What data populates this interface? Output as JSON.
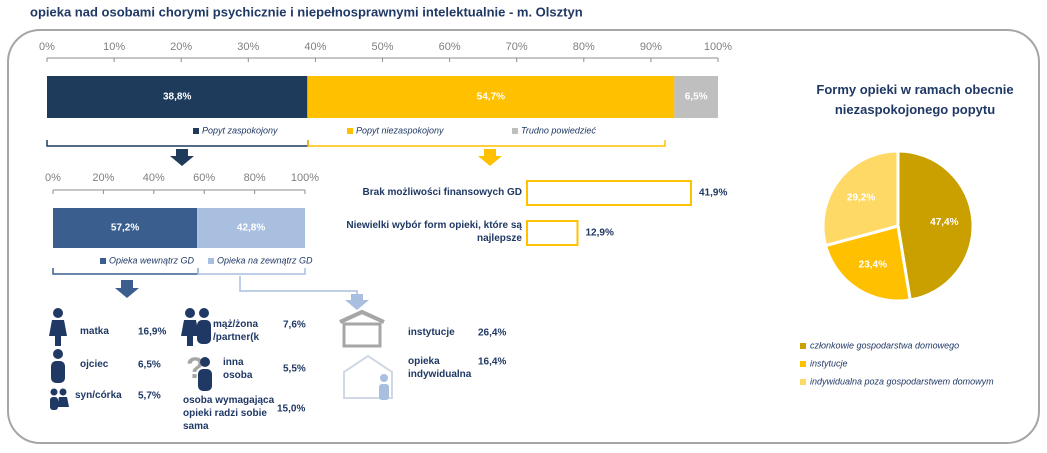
{
  "title": "opieka nad osobami chorymi psychicznie i niepełnosprawnymi intelektualnie - m. Olsztyn",
  "chart_data": [
    {
      "type": "stacked-bar",
      "series": [
        {
          "name": "Popyt zaspokojony",
          "color": "#1f3b5c",
          "values": [
            38.8
          ],
          "value_labels": [
            "38,8%"
          ]
        },
        {
          "name": "Popyt niezaspokojony",
          "color": "#ffc000",
          "values": [
            54.7
          ],
          "value_labels": [
            "54,7%"
          ]
        },
        {
          "name": "Trudno powiedzieć",
          "color": "#bfbfbf",
          "values": [
            6.5
          ],
          "value_labels": [
            "6,5%"
          ]
        }
      ],
      "xlim": [
        0,
        100
      ],
      "xticks": [
        {
          "value": 0,
          "label": "0%"
        },
        {
          "value": 10,
          "label": "10%"
        },
        {
          "value": 20,
          "label": "20%"
        },
        {
          "value": 30,
          "label": "30%"
        },
        {
          "value": 40,
          "label": "40%"
        },
        {
          "value": 50,
          "label": "50%"
        },
        {
          "value": 60,
          "label": "60%"
        },
        {
          "value": 70,
          "label": "70%"
        },
        {
          "value": 80,
          "label": "80%"
        },
        {
          "value": 90,
          "label": "90%"
        },
        {
          "value": 100,
          "label": "100%"
        }
      ]
    },
    {
      "type": "stacked-bar",
      "series": [
        {
          "name": "Opieka wewnątrz GD",
          "color": "#3a5f8f",
          "values": [
            57.2
          ],
          "value_labels": [
            "57,2%"
          ]
        },
        {
          "name": "Opieka na zewnątrz GD",
          "color": "#a9bfdf",
          "values": [
            42.8
          ],
          "value_labels": [
            "42,8%"
          ]
        }
      ],
      "xlim": [
        0,
        100
      ],
      "xticks": [
        {
          "value": 0,
          "label": "0%"
        },
        {
          "value": 20,
          "label": "20%"
        },
        {
          "value": 40,
          "label": "40%"
        },
        {
          "value": 60,
          "label": "60%"
        },
        {
          "value": 80,
          "label": "80%"
        },
        {
          "value": 100,
          "label": "100%"
        }
      ]
    },
    {
      "type": "hbar",
      "color": "#ffc000",
      "categories": [
        "Brak możliwości finansowych GD",
        "Niewielki wybór form opieki, które są najlepsze"
      ],
      "values": [
        41.9,
        12.9
      ],
      "value_labels": [
        "41,9%",
        "12,9%"
      ]
    },
    {
      "type": "pie",
      "title": "Formy opieki w ramach obecnie niezaspokojonego popytu",
      "categories": [
        "członkowie gospodarstwa domowego",
        "instytucje",
        "indywidualna poza gospodarstwem domowym"
      ],
      "values": [
        47.4,
        23.4,
        29.2
      ],
      "value_labels": [
        "47,4%",
        "23,4%",
        "29,2%"
      ],
      "colors": [
        "#c9a000",
        "#ffc000",
        "#ffd966"
      ]
    }
  ],
  "within": [
    {
      "label": "matka",
      "value": "16,9%"
    },
    {
      "label": "ojciec",
      "value": "6,5%"
    },
    {
      "label": "syn/córka",
      "value": "5,7%"
    },
    {
      "label": "mąż/żona /partner(k",
      "value": "7,6%"
    },
    {
      "label": "inna osoba",
      "value": "5,5%"
    },
    {
      "label": "osoba wymagająca opieki radzi sobie sama",
      "value": "15,0%"
    }
  ],
  "outside": [
    {
      "label": "instytucje",
      "value": "26,4%"
    },
    {
      "label": "opieka indywidualna",
      "value": "16,4%"
    }
  ]
}
